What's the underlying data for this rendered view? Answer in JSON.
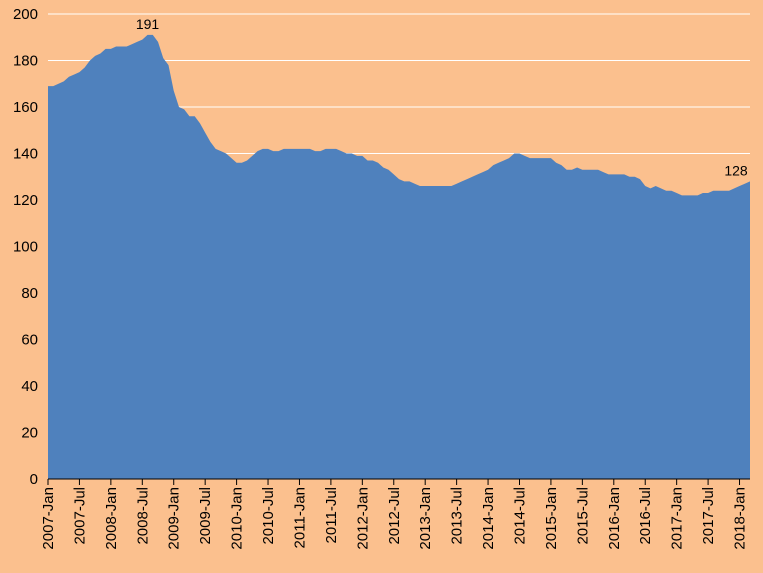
{
  "chart_data": {
    "type": "area",
    "categories": [
      "2007-Jan",
      null,
      null,
      null,
      null,
      null,
      "2007-Jul",
      null,
      null,
      null,
      null,
      null,
      "2008-Jan",
      null,
      null,
      null,
      null,
      null,
      "2008-Jul",
      null,
      null,
      null,
      null,
      null,
      "2009-Jan",
      null,
      null,
      null,
      null,
      null,
      "2009-Jul",
      null,
      null,
      null,
      null,
      null,
      "2010-Jan",
      null,
      null,
      null,
      null,
      null,
      "2010-Jul",
      null,
      null,
      null,
      null,
      null,
      "2011-Jan",
      null,
      null,
      null,
      null,
      null,
      "2011-Jul",
      null,
      null,
      null,
      null,
      null,
      "2012-Jan",
      null,
      null,
      null,
      null,
      null,
      "2012-Jul",
      null,
      null,
      null,
      null,
      null,
      "2013-Jan",
      null,
      null,
      null,
      null,
      null,
      "2013-Jul",
      null,
      null,
      null,
      null,
      null,
      "2014-Jan",
      null,
      null,
      null,
      null,
      null,
      "2014-Jul",
      null,
      null,
      null,
      null,
      null,
      "2015-Jan",
      null,
      null,
      null,
      null,
      null,
      "2015-Jul",
      null,
      null,
      null,
      null,
      null,
      "2016-Jan",
      null,
      null,
      null,
      null,
      null,
      "2016-Jul",
      null,
      null,
      null,
      null,
      null,
      "2017-Jan",
      null,
      null,
      null,
      null,
      null,
      "2017-Jul",
      null,
      null,
      null,
      null,
      null,
      "2018-Jan",
      null,
      null
    ],
    "values": [
      169,
      169,
      170,
      171,
      173,
      174,
      175,
      177,
      180,
      182,
      183,
      185,
      185,
      186,
      186,
      186,
      187,
      188,
      189,
      191,
      191,
      188,
      181,
      178,
      167,
      160,
      159,
      156,
      156,
      153,
      149,
      145,
      142,
      141,
      140,
      138,
      136,
      136,
      137,
      139,
      141,
      142,
      142,
      141,
      141,
      142,
      142,
      142,
      142,
      142,
      142,
      141,
      141,
      142,
      142,
      142,
      141,
      140,
      140,
      139,
      139,
      137,
      137,
      136,
      134,
      133,
      131,
      129,
      128,
      128,
      127,
      126,
      126,
      126,
      126,
      126,
      126,
      126,
      127,
      128,
      129,
      130,
      131,
      132,
      133,
      135,
      136,
      137,
      138,
      140,
      140,
      139,
      138,
      138,
      138,
      138,
      138,
      136,
      135,
      133,
      133,
      134,
      133,
      133,
      133,
      133,
      132,
      131,
      131,
      131,
      131,
      130,
      130,
      129,
      126,
      125,
      126,
      125,
      124,
      124,
      123,
      122,
      122,
      122,
      122,
      123,
      123,
      124,
      124,
      124,
      124,
      125,
      126,
      127,
      128
    ],
    "color": "#4f81bd",
    "ylim": [
      0,
      200
    ],
    "yticks": [
      0,
      20,
      40,
      60,
      80,
      100,
      120,
      140,
      160,
      180,
      200
    ],
    "grid": true
  }
}
